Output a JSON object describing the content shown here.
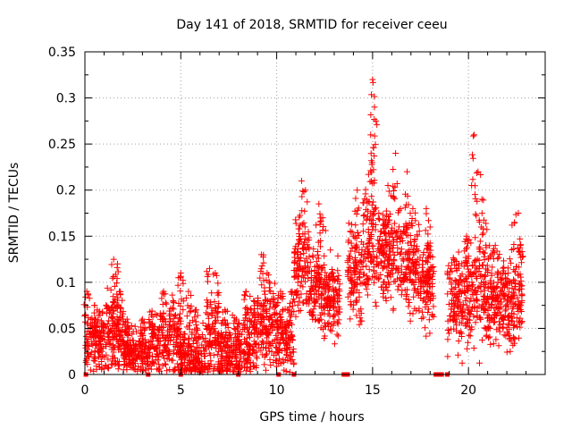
{
  "chart_data": {
    "type": "scatter",
    "title": "Day 141 of 2018, SRMTID for receiver ceeu",
    "xlabel": "GPS time / hours",
    "ylabel": "SRMTID / TECUs",
    "xlim": [
      0,
      24
    ],
    "ylim": [
      0,
      0.35
    ],
    "xticks": [
      0,
      5,
      10,
      15,
      20
    ],
    "xtick_labels": [
      "0",
      "5",
      "10",
      "15",
      "20"
    ],
    "yticks": [
      0,
      0.05,
      0.1,
      0.15,
      0.2,
      0.25,
      0.3,
      0.35
    ],
    "ytick_labels": [
      "0",
      "0.05",
      "0.1",
      "0.15",
      "0.2",
      "0.25",
      "0.3",
      "0.35"
    ],
    "grid": true,
    "marker": "+",
    "color": "#ff0000",
    "series": [
      {
        "name": "SRMTID",
        "segments": [
          {
            "x0": 0.0,
            "x1": 1.0,
            "mean": 0.035,
            "spread": 0.02,
            "peaks": [
              [
                0.1,
                0.09
              ],
              [
                0.5,
                0.075
              ]
            ]
          },
          {
            "x0": 1.0,
            "x1": 2.0,
            "mean": 0.045,
            "spread": 0.025,
            "peaks": [
              [
                1.5,
                0.125
              ],
              [
                1.7,
                0.12
              ],
              [
                1.8,
                0.09
              ]
            ]
          },
          {
            "x0": 2.0,
            "x1": 3.3,
            "mean": 0.025,
            "spread": 0.015,
            "peaks": [
              [
                2.2,
                0.06
              ],
              [
                3.0,
                0.06
              ]
            ]
          },
          {
            "x0": 3.3,
            "x1": 5.0,
            "mean": 0.035,
            "spread": 0.025,
            "peaks": [
              [
                4.1,
                0.09
              ],
              [
                4.6,
                0.08
              ],
              [
                5.0,
                0.11
              ]
            ]
          },
          {
            "x0": 5.0,
            "x1": 6.3,
            "mean": 0.02,
            "spread": 0.02,
            "peaks": [
              [
                5.4,
                0.09
              ],
              [
                5.8,
                0.07
              ]
            ]
          },
          {
            "x0": 6.3,
            "x1": 7.0,
            "mean": 0.04,
            "spread": 0.025,
            "peaks": [
              [
                6.5,
                0.115
              ],
              [
                6.8,
                0.11
              ]
            ]
          },
          {
            "x0": 7.0,
            "x1": 8.2,
            "mean": 0.025,
            "spread": 0.02,
            "peaks": [
              [
                7.3,
                0.07
              ],
              [
                7.9,
                0.06
              ]
            ]
          },
          {
            "x0": 8.2,
            "x1": 9.0,
            "mean": 0.04,
            "spread": 0.025,
            "peaks": [
              [
                8.4,
                0.09
              ],
              [
                8.8,
                0.08
              ]
            ]
          },
          {
            "x0": 9.0,
            "x1": 10.0,
            "mean": 0.05,
            "spread": 0.03,
            "peaks": [
              [
                9.2,
                0.13
              ],
              [
                9.5,
                0.11
              ]
            ]
          },
          {
            "x0": 10.0,
            "x1": 10.9,
            "mean": 0.04,
            "spread": 0.025,
            "peaks": [
              [
                10.2,
                0.09
              ],
              [
                10.8,
                0.09
              ]
            ]
          },
          {
            "x0": 10.9,
            "x1": 11.7,
            "mean": 0.12,
            "spread": 0.03,
            "peaks": [
              [
                11.3,
                0.21
              ],
              [
                11.5,
                0.2
              ]
            ]
          },
          {
            "x0": 11.7,
            "x1": 12.5,
            "mean": 0.09,
            "spread": 0.03,
            "peaks": [
              [
                12.2,
                0.185
              ],
              [
                12.4,
                0.17
              ]
            ]
          },
          {
            "x0": 12.5,
            "x1": 13.3,
            "mean": 0.08,
            "spread": 0.025,
            "peaks": [
              [
                12.8,
                0.135
              ]
            ]
          },
          {
            "x0": 13.7,
            "x1": 14.5,
            "mean": 0.11,
            "spread": 0.035,
            "peaks": [
              [
                14.2,
                0.2
              ],
              [
                14.0,
                0.15
              ]
            ]
          },
          {
            "x0": 14.5,
            "x1": 15.3,
            "mean": 0.14,
            "spread": 0.04,
            "peaks": [
              [
                15.0,
                0.32
              ],
              [
                15.1,
                0.29
              ],
              [
                14.9,
                0.26
              ]
            ]
          },
          {
            "x0": 15.3,
            "x1": 16.5,
            "mean": 0.13,
            "spread": 0.035,
            "peaks": [
              [
                15.8,
                0.205
              ],
              [
                16.2,
                0.24
              ]
            ]
          },
          {
            "x0": 16.5,
            "x1": 17.4,
            "mean": 0.12,
            "spread": 0.03,
            "peaks": [
              [
                16.8,
                0.22
              ],
              [
                17.1,
                0.18
              ]
            ]
          },
          {
            "x0": 17.4,
            "x1": 18.2,
            "mean": 0.1,
            "spread": 0.03,
            "peaks": [
              [
                17.8,
                0.18
              ],
              [
                18.0,
                0.16
              ]
            ]
          },
          {
            "x0": 18.9,
            "x1": 20.0,
            "mean": 0.08,
            "spread": 0.03,
            "peaks": [
              [
                19.5,
                0.12
              ],
              [
                19.9,
                0.15
              ]
            ]
          },
          {
            "x0": 20.0,
            "x1": 21.0,
            "mean": 0.09,
            "spread": 0.035,
            "peaks": [
              [
                20.3,
                0.26
              ],
              [
                20.5,
                0.22
              ],
              [
                20.7,
                0.19
              ]
            ]
          },
          {
            "x0": 21.0,
            "x1": 22.0,
            "mean": 0.08,
            "spread": 0.03,
            "peaks": [
              [
                21.4,
                0.14
              ],
              [
                21.8,
                0.11
              ]
            ]
          },
          {
            "x0": 22.0,
            "x1": 22.8,
            "mean": 0.075,
            "spread": 0.03,
            "peaks": [
              [
                22.4,
                0.165
              ],
              [
                22.6,
                0.175
              ],
              [
                22.7,
                0.14
              ]
            ]
          }
        ],
        "zero_markers": [
          0.05,
          3.3,
          5.0,
          8.0,
          10.1,
          10.9,
          13.5,
          13.7,
          18.3,
          18.5,
          18.6,
          18.9
        ]
      }
    ]
  }
}
